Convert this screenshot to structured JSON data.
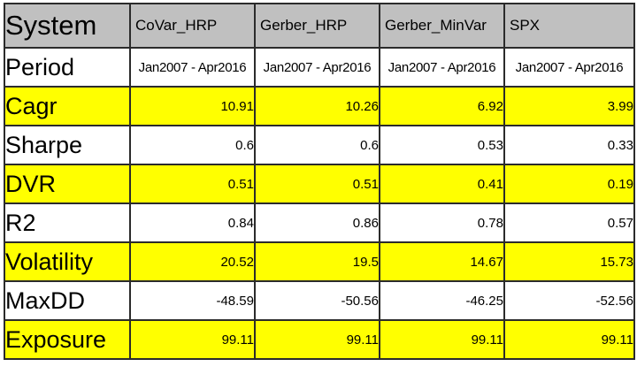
{
  "table": {
    "corner": "System",
    "columns": [
      "CoVar_HRP",
      "Gerber_HRP",
      "Gerber_MinVar",
      "SPX"
    ],
    "period": {
      "label": "Period",
      "values": [
        "Jan2007 - Apr2016",
        "Jan2007 - Apr2016",
        "Jan2007 - Apr2016",
        "Jan2007 - Apr2016"
      ]
    },
    "rows": [
      {
        "label": "Cagr",
        "values": [
          "10.91",
          "10.26",
          "6.92",
          "3.99"
        ]
      },
      {
        "label": "Sharpe",
        "values": [
          "0.6",
          "0.6",
          "0.53",
          "0.33"
        ]
      },
      {
        "label": "DVR",
        "values": [
          "0.51",
          "0.51",
          "0.41",
          "0.19"
        ]
      },
      {
        "label": "R2",
        "values": [
          "0.84",
          "0.86",
          "0.78",
          "0.57"
        ]
      },
      {
        "label": "Volatility",
        "values": [
          "20.52",
          "19.5",
          "14.67",
          "15.73"
        ]
      },
      {
        "label": "MaxDD",
        "values": [
          "-48.59",
          "-50.56",
          "-46.25",
          "-52.56"
        ]
      },
      {
        "label": "Exposure",
        "values": [
          "99.11",
          "99.11",
          "99.11",
          "99.11"
        ]
      }
    ],
    "highlight_color": "#ffff00",
    "header_color": "#c0c0c0"
  }
}
